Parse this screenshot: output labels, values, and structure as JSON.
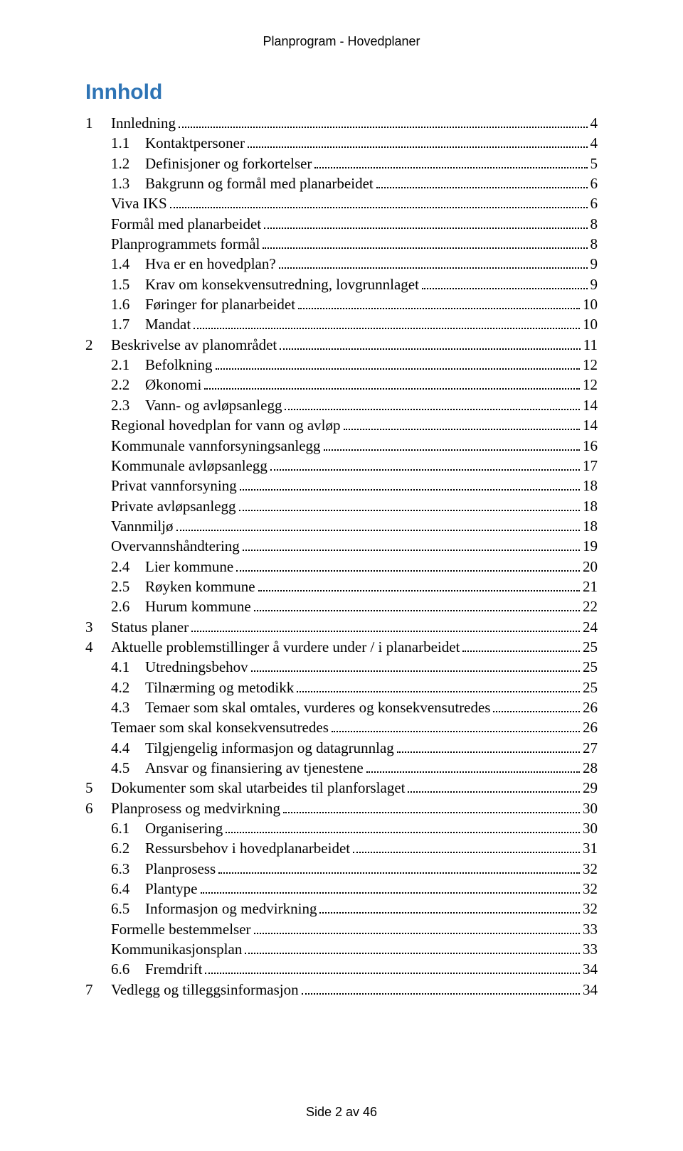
{
  "header": "Planprogram - Hovedplaner",
  "title": "Innhold",
  "footer": "Side 2 av 46",
  "toc": [
    {
      "level": 1,
      "num": "1",
      "text": "Innledning",
      "page": "4"
    },
    {
      "level": 2,
      "num": "1.1",
      "text": "Kontaktpersoner",
      "page": "4"
    },
    {
      "level": 2,
      "num": "1.2",
      "text": "Definisjoner og forkortelser",
      "page": "5"
    },
    {
      "level": 2,
      "num": "1.3",
      "text": "Bakgrunn og formål med planarbeidet",
      "page": "6"
    },
    {
      "level": 3,
      "num": "",
      "text": "Viva IKS",
      "page": "6"
    },
    {
      "level": 3,
      "num": "",
      "text": "Formål med planarbeidet",
      "page": "8"
    },
    {
      "level": 3,
      "num": "",
      "text": "Planprogrammets formål",
      "page": "8"
    },
    {
      "level": 2,
      "num": "1.4",
      "text": "Hva er en hovedplan?",
      "page": "9"
    },
    {
      "level": 2,
      "num": "1.5",
      "text": "Krav om konsekvensutredning, lovgrunnlaget",
      "page": "9"
    },
    {
      "level": 2,
      "num": "1.6",
      "text": "Føringer for planarbeidet",
      "page": "10"
    },
    {
      "level": 2,
      "num": "1.7",
      "text": "Mandat",
      "page": "10"
    },
    {
      "level": 1,
      "num": "2",
      "text": "Beskrivelse av planområdet",
      "page": "11"
    },
    {
      "level": 2,
      "num": "2.1",
      "text": "Befolkning",
      "page": "12"
    },
    {
      "level": 2,
      "num": "2.2",
      "text": "Økonomi",
      "page": "12"
    },
    {
      "level": 2,
      "num": "2.3",
      "text": "Vann- og avløpsanlegg",
      "page": "14"
    },
    {
      "level": 3,
      "num": "",
      "text": "Regional hovedplan for vann og avløp",
      "page": "14"
    },
    {
      "level": 3,
      "num": "",
      "text": "Kommunale vannforsyningsanlegg",
      "page": "16"
    },
    {
      "level": 3,
      "num": "",
      "text": "Kommunale avløpsanlegg",
      "page": "17"
    },
    {
      "level": 3,
      "num": "",
      "text": "Privat vannforsyning",
      "page": "18"
    },
    {
      "level": 3,
      "num": "",
      "text": "Private avløpsanlegg",
      "page": "18"
    },
    {
      "level": 3,
      "num": "",
      "text": "Vannmiljø",
      "page": "18"
    },
    {
      "level": 3,
      "num": "",
      "text": "Overvannshåndtering",
      "page": "19"
    },
    {
      "level": 2,
      "num": "2.4",
      "text": "Lier kommune",
      "page": "20"
    },
    {
      "level": 2,
      "num": "2.5",
      "text": "Røyken kommune",
      "page": "21"
    },
    {
      "level": 2,
      "num": "2.6",
      "text": "Hurum kommune",
      "page": "22"
    },
    {
      "level": 1,
      "num": "3",
      "text": "Status planer",
      "page": "24"
    },
    {
      "level": 1,
      "num": "4",
      "text": "Aktuelle problemstillinger å vurdere under / i planarbeidet",
      "page": "25"
    },
    {
      "level": 2,
      "num": "4.1",
      "text": "Utredningsbehov",
      "page": "25"
    },
    {
      "level": 2,
      "num": "4.2",
      "text": "Tilnærming og metodikk",
      "page": "25"
    },
    {
      "level": 2,
      "num": "4.3",
      "text": "Temaer som skal omtales, vurderes og konsekvensutredes",
      "page": "26"
    },
    {
      "level": 3,
      "num": "",
      "text": "Temaer som skal konsekvensutredes",
      "page": "26"
    },
    {
      "level": 2,
      "num": "4.4",
      "text": "Tilgjengelig informasjon og datagrunnlag",
      "page": "27"
    },
    {
      "level": 2,
      "num": "4.5",
      "text": "Ansvar og finansiering av tjenestene",
      "page": "28"
    },
    {
      "level": 1,
      "num": "5",
      "text": "Dokumenter som skal utarbeides til planforslaget",
      "page": "29"
    },
    {
      "level": 1,
      "num": "6",
      "text": "Planprosess og medvirkning",
      "page": "30"
    },
    {
      "level": 2,
      "num": "6.1",
      "text": "Organisering",
      "page": "30"
    },
    {
      "level": 2,
      "num": "6.2",
      "text": "Ressursbehov i hovedplanarbeidet",
      "page": "31"
    },
    {
      "level": 2,
      "num": "6.3",
      "text": "Planprosess",
      "page": "32"
    },
    {
      "level": 2,
      "num": "6.4",
      "text": "Plantype",
      "page": "32"
    },
    {
      "level": 2,
      "num": "6.5",
      "text": "Informasjon og medvirkning",
      "page": "32"
    },
    {
      "level": 3,
      "num": "",
      "text": "Formelle bestemmelser",
      "page": "33"
    },
    {
      "level": 3,
      "num": "",
      "text": "Kommunikasjonsplan",
      "page": "33"
    },
    {
      "level": 2,
      "num": "6.6",
      "text": "Fremdrift",
      "page": "34"
    },
    {
      "level": 1,
      "num": "7",
      "text": "Vedlegg og tilleggsinformasjon",
      "page": "34"
    }
  ]
}
